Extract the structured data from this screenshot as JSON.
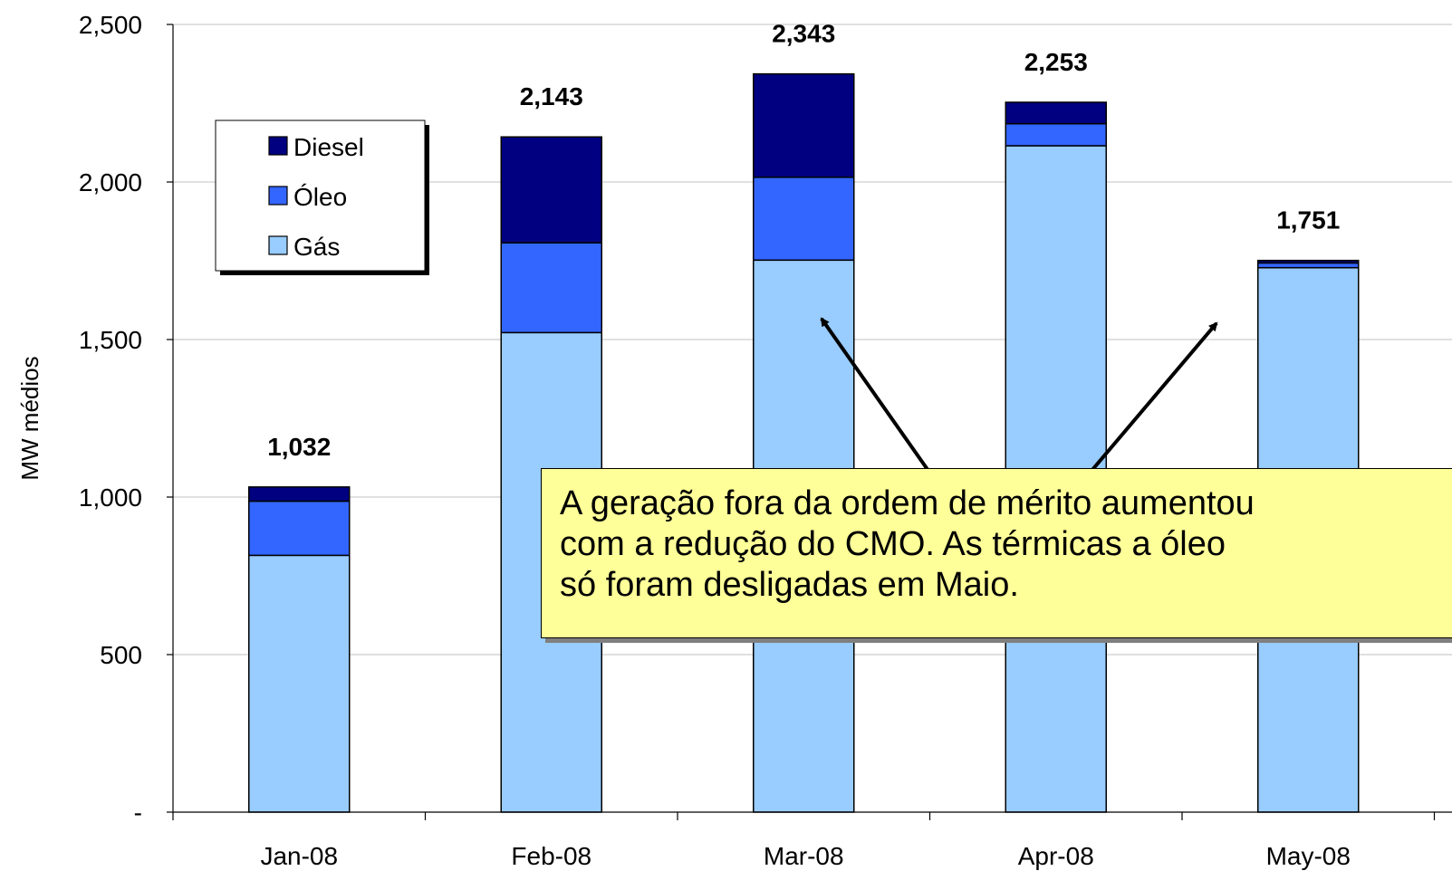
{
  "chart_data": {
    "type": "bar",
    "stacked": true,
    "categories": [
      "Jan-08",
      "Feb-08",
      "Mar-08",
      "Apr-08",
      "May-08"
    ],
    "series": [
      {
        "name": "Gás",
        "color": "#99ccff",
        "values": [
          815,
          1522,
          1752,
          2115,
          1728
        ]
      },
      {
        "name": "Óleo",
        "color": "#3366ff",
        "values": [
          172,
          285,
          263,
          70,
          15
        ]
      },
      {
        "name": "Diesel",
        "color": "#000080",
        "values": [
          45,
          336,
          328,
          68,
          8
        ]
      }
    ],
    "totals": [
      1032,
      2143,
      2343,
      2253,
      1751
    ],
    "total_labels": [
      "1,032",
      "2,143",
      "2,343",
      "2,253",
      "1,751"
    ],
    "ylabel": "MW médios",
    "ylim": [
      0,
      2500
    ],
    "yticks": [
      0,
      500,
      1000,
      1500,
      2000,
      2500
    ],
    "ytick_labels": [
      "-",
      "500",
      "1,000",
      "1,500",
      "2,000",
      "2,500"
    ],
    "grid": true,
    "legend_position": "top-left",
    "legend_order": [
      "Diesel",
      "Óleo",
      "Gás"
    ],
    "annotation": "A geração fora da ordem de mérito aumentou\ncom a redução do CMO. As térmicas a óleo\nsó foram desligadas em Maio."
  }
}
